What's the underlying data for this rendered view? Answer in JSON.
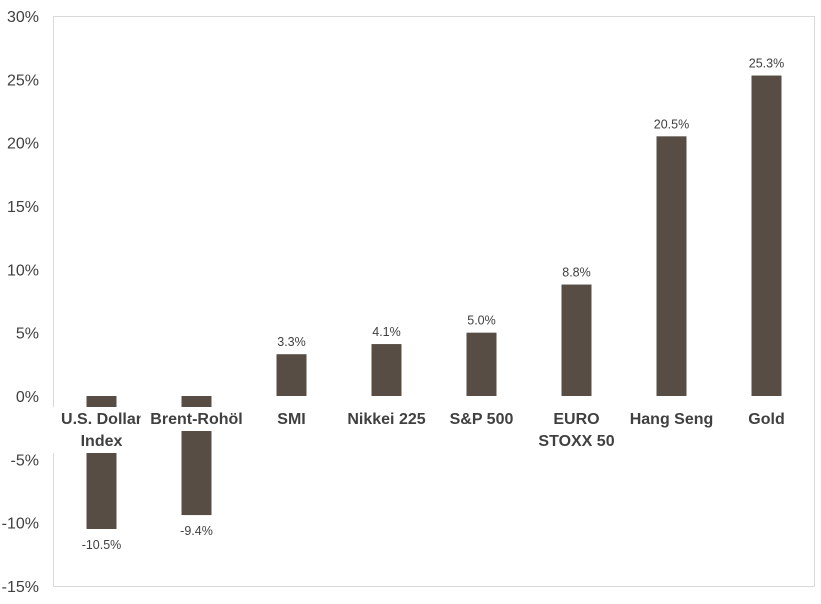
{
  "chart_data": {
    "type": "bar",
    "categories": [
      "U.S. Dollar Index",
      "Brent-Rohöl",
      "SMI",
      "Nikkei 225",
      "S&P 500",
      "EURO STOXX 50",
      "Hang Seng",
      "Gold"
    ],
    "category_lines": [
      [
        "U.S. Dollar",
        "Index"
      ],
      [
        "Brent-Rohöl"
      ],
      [
        "SMI"
      ],
      [
        "Nikkei 225"
      ],
      [
        "S&P 500"
      ],
      [
        "EURO",
        "STOXX 50"
      ],
      [
        "Hang Seng"
      ],
      [
        "Gold"
      ]
    ],
    "values": [
      -10.5,
      -9.4,
      3.3,
      4.1,
      5.0,
      8.8,
      20.5,
      25.3
    ],
    "data_labels": [
      "-10.5%",
      "-9.4%",
      "3.3%",
      "4.1%",
      "5.0%",
      "8.8%",
      "20.5%",
      "25.3%"
    ],
    "ylim": [
      -15,
      30
    ],
    "yticks": [
      -15,
      -10,
      -5,
      0,
      5,
      10,
      15,
      20,
      25,
      30
    ],
    "ytick_labels": [
      "-15%",
      "-10%",
      "-5%",
      "0%",
      "5%",
      "10%",
      "15%",
      "20%",
      "25%",
      "30%"
    ],
    "title": "",
    "xlabel": "",
    "ylabel": "",
    "grid": false,
    "legend": "none",
    "bar_color": "#574d44",
    "frame_color": "#d9d9d9",
    "text_color": "#404040"
  }
}
